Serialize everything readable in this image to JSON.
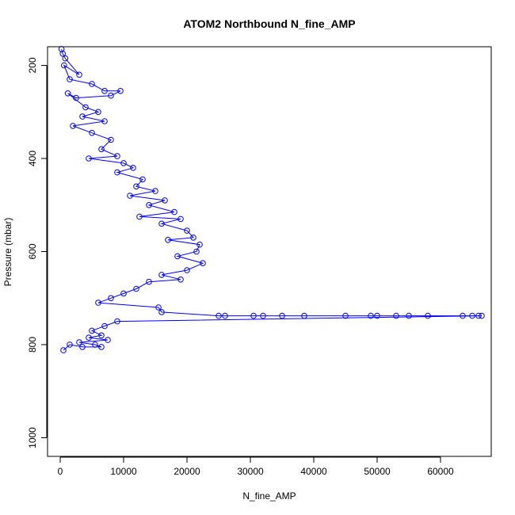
{
  "chart_data": {
    "type": "scatter",
    "title": "ATOM2 Northbound N_fine_AMP",
    "xlabel": "N_fine_AMP",
    "ylabel": "Pressure (mbar)",
    "xlim": [
      -2000,
      68000
    ],
    "ylim": [
      1040,
      160
    ],
    "y_reversed": true,
    "x_ticks": [
      0,
      10000,
      20000,
      30000,
      40000,
      50000,
      60000
    ],
    "x_tick_labels": [
      "0",
      "10000",
      "20000",
      "30000",
      "40000",
      "50000",
      "60000"
    ],
    "y_ticks": [
      200,
      400,
      600,
      800,
      1000
    ],
    "y_tick_labels": [
      "200",
      "400",
      "600",
      "800",
      "1000"
    ],
    "grid": false,
    "legend": "none",
    "series": [
      {
        "color": "#0000ff",
        "marker": "open-circle",
        "connected": true,
        "points": [
          [
            200,
            165
          ],
          [
            400,
            175
          ],
          [
            800,
            185
          ],
          [
            3000,
            220
          ],
          [
            600,
            200
          ],
          [
            1500,
            230
          ],
          [
            5000,
            240
          ],
          [
            7000,
            255
          ],
          [
            9500,
            255
          ],
          [
            8000,
            265
          ],
          [
            2500,
            270
          ],
          [
            1200,
            260
          ],
          [
            4000,
            290
          ],
          [
            6000,
            300
          ],
          [
            3500,
            310
          ],
          [
            7000,
            320
          ],
          [
            2000,
            330
          ],
          [
            5000,
            345
          ],
          [
            8000,
            360
          ],
          [
            6500,
            380
          ],
          [
            9000,
            395
          ],
          [
            4500,
            400
          ],
          [
            10000,
            410
          ],
          [
            11500,
            420
          ],
          [
            9000,
            430
          ],
          [
            13000,
            445
          ],
          [
            12000,
            460
          ],
          [
            15000,
            470
          ],
          [
            11000,
            480
          ],
          [
            16500,
            490
          ],
          [
            14000,
            500
          ],
          [
            18000,
            515
          ],
          [
            12500,
            525
          ],
          [
            19000,
            530
          ],
          [
            16000,
            540
          ],
          [
            20000,
            555
          ],
          [
            21000,
            570
          ],
          [
            17000,
            575
          ],
          [
            22000,
            585
          ],
          [
            21500,
            600
          ],
          [
            18500,
            610
          ],
          [
            22500,
            625
          ],
          [
            20000,
            640
          ],
          [
            16000,
            650
          ],
          [
            19000,
            660
          ],
          [
            14000,
            665
          ],
          [
            12000,
            680
          ],
          [
            10000,
            690
          ],
          [
            8000,
            700
          ],
          [
            6000,
            710
          ],
          [
            15500,
            720
          ],
          [
            16000,
            730
          ],
          [
            25000,
            738
          ],
          [
            26000,
            738
          ],
          [
            30500,
            738
          ],
          [
            32000,
            738
          ],
          [
            35000,
            738
          ],
          [
            38500,
            738
          ],
          [
            45000,
            738
          ],
          [
            49000,
            738
          ],
          [
            50000,
            738
          ],
          [
            53000,
            738
          ],
          [
            55000,
            738
          ],
          [
            58000,
            738
          ],
          [
            63500,
            738
          ],
          [
            65000,
            738
          ],
          [
            66000,
            738
          ],
          [
            66500,
            738
          ],
          [
            9000,
            750
          ],
          [
            7000,
            760
          ],
          [
            5000,
            770
          ],
          [
            6500,
            780
          ],
          [
            4500,
            785
          ],
          [
            7500,
            790
          ],
          [
            3000,
            795
          ],
          [
            5500,
            800
          ],
          [
            6500,
            805
          ],
          [
            3500,
            805
          ],
          [
            1500,
            800
          ],
          [
            500,
            812
          ]
        ]
      }
    ]
  }
}
